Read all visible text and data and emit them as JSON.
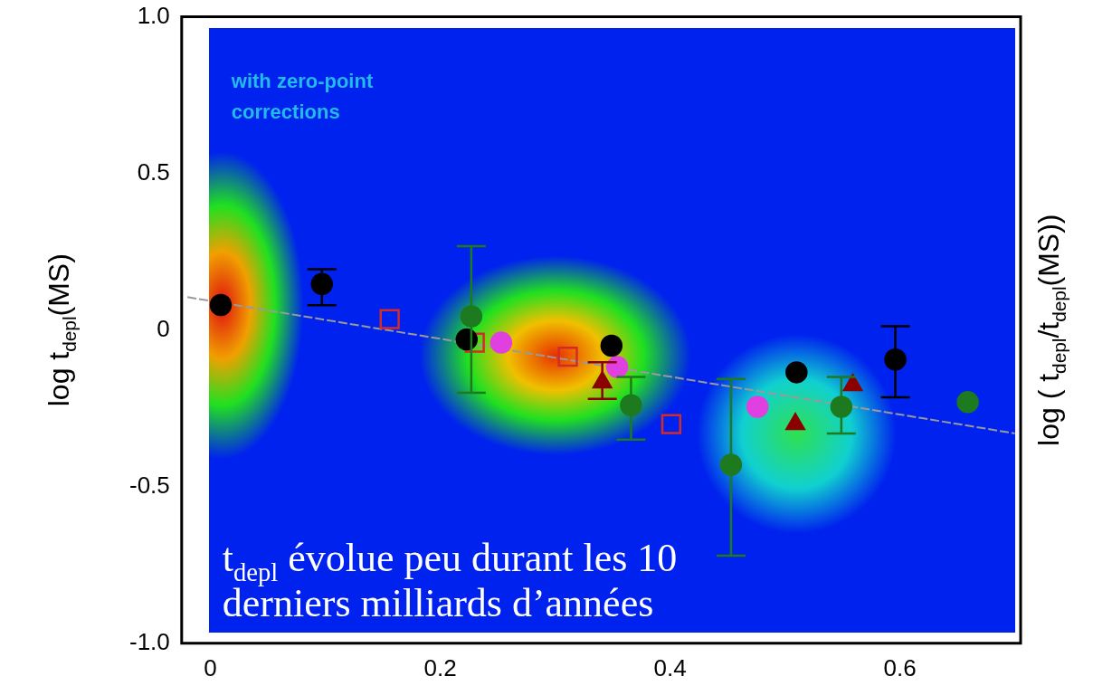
{
  "chart_data": {
    "type": "scatter",
    "ylabel": "log t$_{depl}$(MS)",
    "y2label": "log ( t$_{depl}$/t$_{depl}$(MS))",
    "annotations": [
      "with zero-point corrections",
      "t$_{depl}$ évolue peu durant les 10 derniers milliards d’années"
    ],
    "xlim": [
      -0.025,
      0.705
    ],
    "xticks": [
      {
        "value": 0,
        "label": "0"
      },
      0.2,
      0.4,
      0.6
    ],
    "ylim": [
      -1.0,
      1.0
    ],
    "yticks": [
      {
        "value": -1,
        "label": "-1.0"
      },
      -0.5,
      {
        "value": 0,
        "label": "0"
      },
      0.5,
      {
        "value": 1,
        "label": "1.0"
      }
    ],
    "grid": false,
    "legend": false,
    "series": [
      {
        "type": "line",
        "color": "#9a9a9a",
        "marker": "none",
        "line_style": "dashed",
        "x": [
          -0.02,
          0.7
        ],
        "values": [
          0.105,
          -0.33
        ]
      },
      {
        "color": "#000000",
        "marker": "circle",
        "x": [
          0.009,
          0.097,
          0.223,
          0.349,
          0.51,
          0.596
        ],
        "values": [
          0.08,
          0.147,
          -0.03,
          -0.05,
          -0.135,
          -0.094
        ],
        "errors": [
          null,
          [
            0.079,
            0.194
          ],
          null,
          null,
          null,
          [
            -0.215,
            0.012
          ]
        ]
      },
      {
        "color": "#1e7a1e",
        "marker": "circle",
        "x": [
          0.227,
          0.366,
          0.453,
          0.549,
          0.659
        ],
        "values": [
          0.044,
          -0.24,
          -0.43,
          -0.245,
          -0.23
        ],
        "errors": [
          [
            -0.2,
            0.268
          ],
          [
            -0.35,
            -0.15
          ],
          [
            -0.72,
            -0.156
          ],
          [
            -0.33,
            -0.15
          ],
          null
        ]
      },
      {
        "color": "#d42a2a",
        "marker": "square",
        "x": [
          0.156,
          0.23,
          0.311,
          0.401
        ],
        "values": [
          0.035,
          -0.04,
          -0.085,
          -0.3
        ]
      },
      {
        "color": "#e040e0",
        "marker": "circle",
        "x": [
          0.253,
          0.354,
          0.476
        ],
        "values": [
          -0.04,
          -0.118,
          -0.245
        ]
      },
      {
        "color": "#8b0000",
        "marker": "triangle",
        "x": [
          0.341,
          0.509,
          0.559
        ],
        "values": [
          -0.167,
          -0.3,
          -0.176
        ],
        "errors": [
          [
            -0.22,
            -0.103
          ],
          null,
          null
        ]
      }
    ]
  }
}
